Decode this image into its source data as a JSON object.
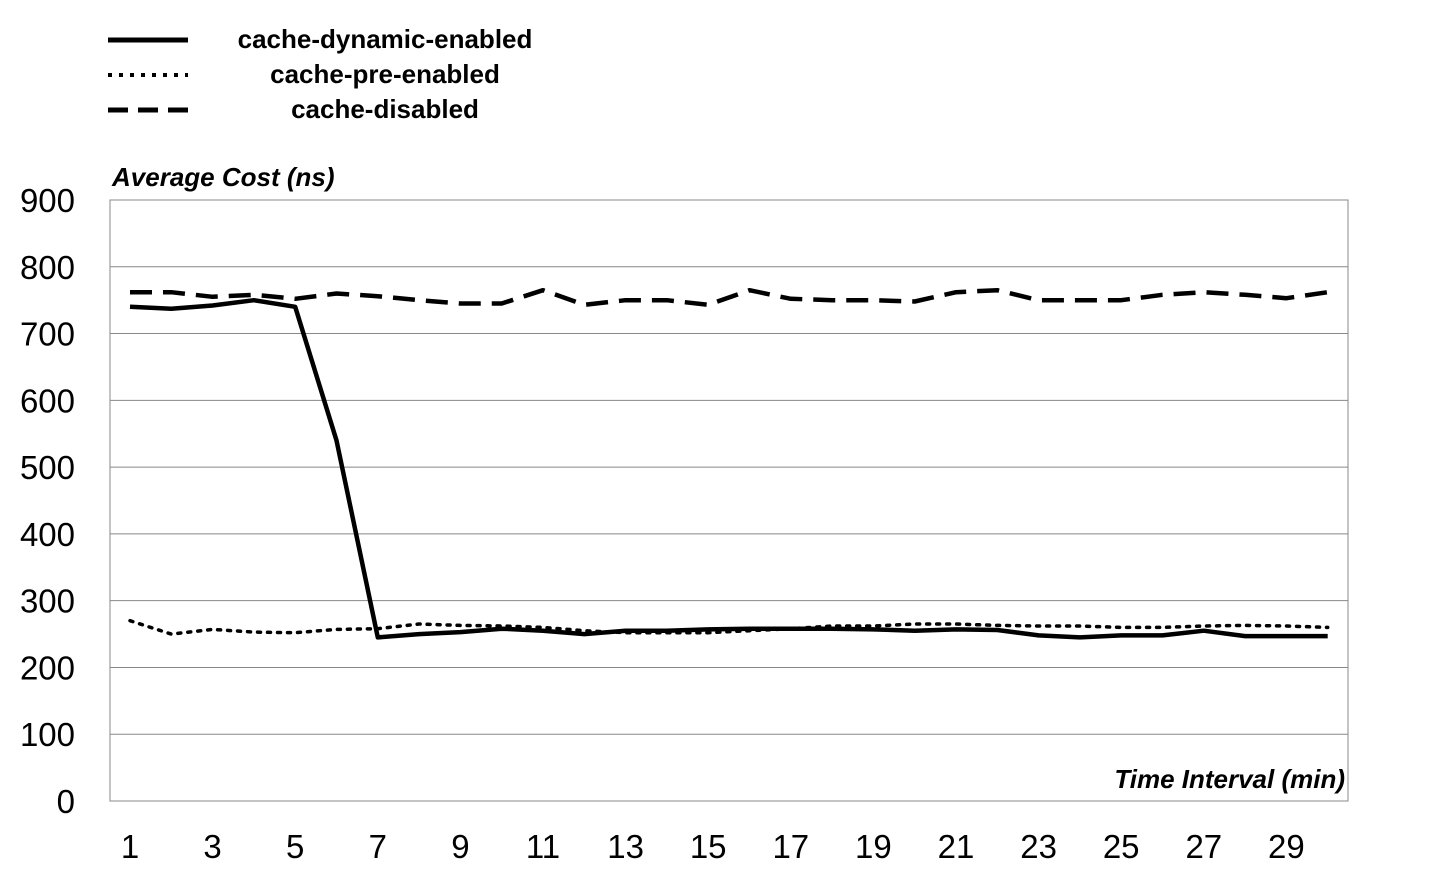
{
  "chart_data": {
    "type": "line",
    "xlabel": "Time Interval (min)",
    "ylabel": "Average Cost (ns)",
    "x": [
      1,
      2,
      3,
      4,
      5,
      6,
      7,
      8,
      9,
      10,
      11,
      12,
      13,
      14,
      15,
      16,
      17,
      18,
      19,
      20,
      21,
      22,
      23,
      24,
      25,
      26,
      27,
      28,
      29,
      30
    ],
    "x_tick_labels": [
      1,
      3,
      5,
      7,
      9,
      11,
      13,
      15,
      17,
      19,
      21,
      23,
      25,
      27,
      29
    ],
    "ylim": [
      0,
      900
    ],
    "y_ticks": [
      0,
      100,
      200,
      300,
      400,
      500,
      600,
      700,
      800,
      900
    ],
    "grid": "horizontal",
    "legend_position": "top-left",
    "series": [
      {
        "name": "cache-dynamic-enabled",
        "style": "solid",
        "color": "#000000",
        "values": [
          740,
          737,
          742,
          750,
          740,
          540,
          245,
          250,
          253,
          258,
          255,
          250,
          255,
          255,
          257,
          258,
          258,
          258,
          257,
          255,
          257,
          256,
          248,
          245,
          248,
          248,
          255,
          247,
          247,
          247
        ]
      },
      {
        "name": "cache-pre-enabled",
        "style": "dotted",
        "color": "#000000",
        "values": [
          270,
          250,
          257,
          253,
          252,
          257,
          258,
          265,
          263,
          262,
          260,
          255,
          252,
          252,
          252,
          255,
          258,
          262,
          262,
          265,
          265,
          263,
          262,
          262,
          260,
          260,
          262,
          263,
          262,
          260
        ]
      },
      {
        "name": "cache-disabled",
        "style": "dashed",
        "color": "#000000",
        "values": [
          762,
          762,
          755,
          758,
          752,
          760,
          756,
          750,
          745,
          745,
          765,
          743,
          750,
          750,
          743,
          765,
          752,
          750,
          750,
          748,
          762,
          765,
          750,
          750,
          750,
          758,
          762,
          758,
          753,
          762
        ]
      }
    ]
  }
}
